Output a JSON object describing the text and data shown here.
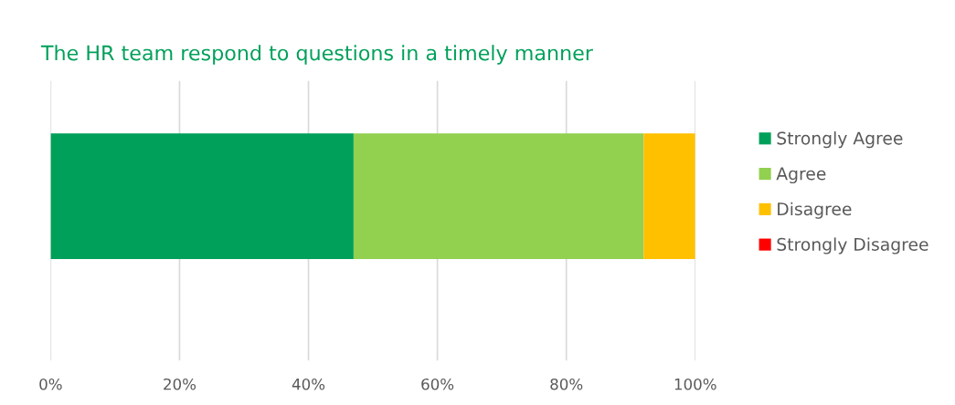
{
  "chart_data": {
    "type": "bar",
    "orientation": "horizontal",
    "stacked": true,
    "title": "The HR team respond to questions in a timely manner",
    "categories": [
      null
    ],
    "series": [
      {
        "name": "Strongly Agree",
        "color": "#00a05a",
        "values": [
          47
        ]
      },
      {
        "name": "Agree",
        "color": "#92d050",
        "values": [
          45
        ]
      },
      {
        "name": "Disagree",
        "color": "#ffc000",
        "values": [
          8
        ]
      },
      {
        "name": "Strongly Disagree",
        "color": "#ff0000",
        "values": [
          0
        ]
      }
    ],
    "xlim": [
      0,
      100
    ],
    "xticks": [
      {
        "value": 0,
        "label": "0%"
      },
      {
        "value": 20,
        "label": "20%"
      },
      {
        "value": 40,
        "label": "40%"
      },
      {
        "value": 60,
        "label": "60%"
      },
      {
        "value": 80,
        "label": "80%"
      },
      {
        "value": 100,
        "label": "100%"
      }
    ],
    "grid": "x",
    "legend": "right"
  }
}
